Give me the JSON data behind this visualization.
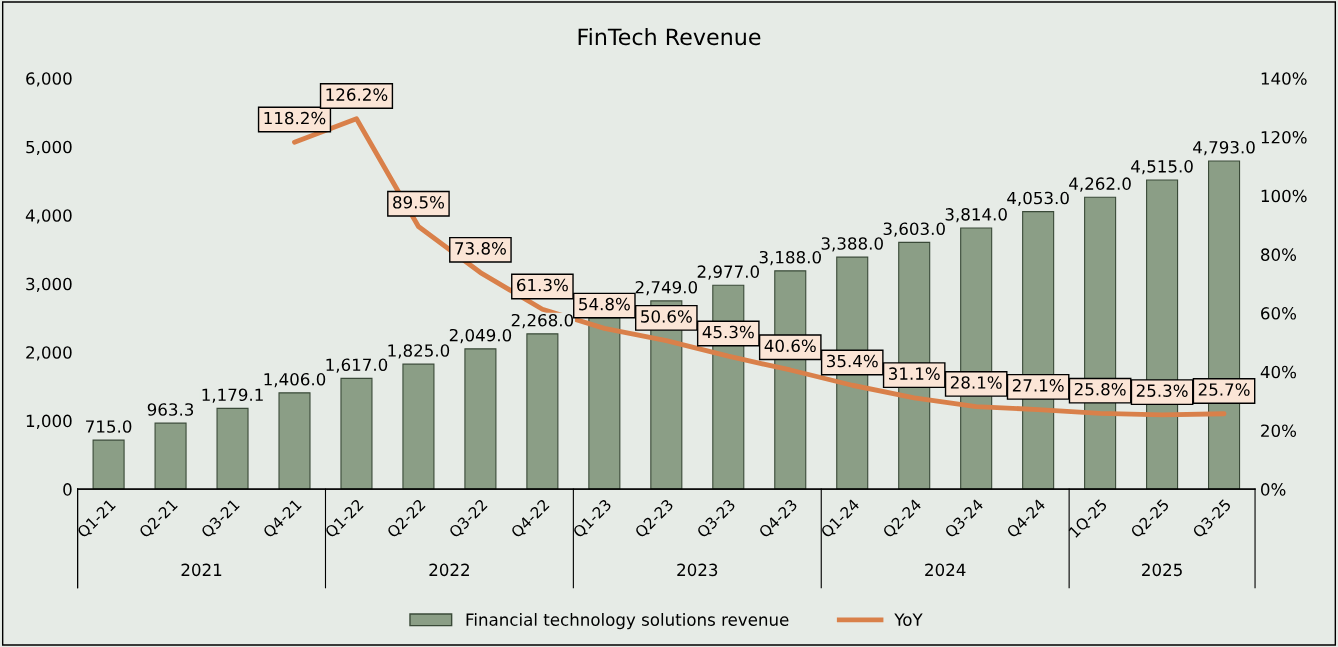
{
  "chart_data": {
    "type": "bar",
    "title": "FinTech Revenue",
    "categories": [
      "Q1-21",
      "Q2-21",
      "Q3-21",
      "Q4-21",
      "Q1-22",
      "Q2-22",
      "Q3-22",
      "Q4-22",
      "Q1-23",
      "Q2-23",
      "Q3-23",
      "Q4-23",
      "Q1-24",
      "Q2-24",
      "Q3-24",
      "Q4-24",
      "1Q-25",
      "Q2-25",
      "Q3-25"
    ],
    "series": [
      {
        "name": "Financial technology solutions revenue",
        "color": "#8b9e86",
        "values": [
          715.0,
          963.3,
          1179.1,
          1406.0,
          1617.0,
          1825.0,
          2049.0,
          2268.0,
          2500,
          2749.0,
          2977.0,
          3188.0,
          3388.0,
          3603.0,
          3814.0,
          4053.0,
          4262.0,
          4515.0,
          4793.0
        ],
        "value_labels": [
          "715.0",
          "963.3",
          "1,179.1",
          "1,406.0",
          "1,617.0",
          "1,825.0",
          "2,049.0",
          "2,268.0",
          null,
          "2,749.0",
          "2,977.0",
          "3,188.0",
          "3,388.0",
          "3,603.0",
          "3,814.0",
          "4,053.0",
          "4,262.0",
          "4,515.0",
          "4,793.0"
        ]
      },
      {
        "name": "YoY",
        "type": "line",
        "axis": "y2",
        "color": "#d9804a",
        "values": [
          null,
          null,
          null,
          118.2,
          126.2,
          89.5,
          73.8,
          61.3,
          54.8,
          50.6,
          45.3,
          40.6,
          35.4,
          31.1,
          28.1,
          27.1,
          25.8,
          25.3,
          25.7
        ],
        "value_labels": [
          null,
          null,
          null,
          "118.2%",
          "126.2%",
          "89.5%",
          "73.8%",
          "61.3%",
          "54.8%",
          "50.6%",
          "45.3%",
          "40.6%",
          "35.4%",
          "31.1%",
          "28.1%",
          "27.1%",
          "25.8%",
          "25.3%",
          "25.7%"
        ]
      }
    ],
    "ylim": [
      0,
      6000
    ],
    "yticks": [
      0,
      {
        "value": 1000,
        "label": "1,000"
      },
      {
        "value": 2000,
        "label": "2,000"
      },
      {
        "value": 3000,
        "label": "3,000"
      },
      {
        "value": 4000,
        "label": "4,000"
      },
      {
        "value": 5000,
        "label": "5,000"
      },
      {
        "value": 6000,
        "label": "6,000"
      }
    ],
    "y2lim": [
      0,
      140
    ],
    "y2ticks": [
      {
        "value": 0,
        "label": "0%"
      },
      {
        "value": 20,
        "label": "20%"
      },
      {
        "value": 40,
        "label": "40%"
      },
      {
        "value": 60,
        "label": "60%"
      },
      {
        "value": 80,
        "label": "80%"
      },
      {
        "value": 100,
        "label": "100%"
      },
      {
        "value": 120,
        "label": "120%"
      },
      {
        "value": 140,
        "label": "140%"
      }
    ],
    "annotations": [
      "2021",
      "2022",
      "2023",
      "2024",
      "2025"
    ],
    "grid": false,
    "legend": "bottom",
    "marker": "none"
  }
}
